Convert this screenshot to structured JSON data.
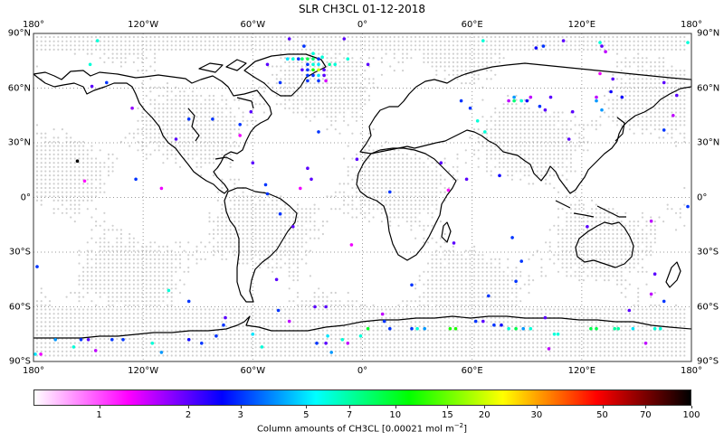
{
  "chart_data": {
    "type": "scatter",
    "subtype": "geographic map (Plate Carree) with colored observation points",
    "title": "SLR CH3CL 01-12-2018",
    "x_ticks": [
      "180°",
      "120°W",
      "60°W",
      "0°",
      "60°E",
      "120°E",
      "180°"
    ],
    "y_ticks": [
      "90°N",
      "60°N",
      "30°N",
      "0°",
      "30°S",
      "60°S",
      "90°S"
    ],
    "xlim": [
      -180,
      180
    ],
    "ylim": [
      -90,
      90
    ],
    "grid": "dotted gridlines every 60° lon / 30° lat",
    "background_points": "light gray dots on a regular grid over oceans/regions (no data)",
    "colorbar": {
      "label": "Column amounts of CH3CL [0.00021 mol m",
      "label_sup": "−2",
      "label_end": "]",
      "scale": "log",
      "range": [
        0.6,
        100
      ],
      "ticks": [
        "1",
        "2",
        "3",
        "5",
        "7",
        "10",
        "15",
        "20",
        "30",
        "50",
        "70",
        "100"
      ],
      "colors": [
        "#ffffff",
        "#ff00ff",
        "#0000ff",
        "#00ffff",
        "#00ff00",
        "#ffff00",
        "#ff0000",
        "#000000"
      ]
    },
    "points": [
      {
        "lon": -145,
        "lat": 86,
        "v": 6
      },
      {
        "lon": -149,
        "lat": 73,
        "v": 6
      },
      {
        "lon": -140,
        "lat": 63,
        "v": 3
      },
      {
        "lon": -148,
        "lat": 61,
        "v": 2
      },
      {
        "lon": -156,
        "lat": 20,
        "v": 100
      },
      {
        "lon": -152,
        "lat": 9,
        "v": 1.2
      },
      {
        "lon": -178,
        "lat": -38,
        "v": 3
      },
      {
        "lon": -179,
        "lat": -86,
        "v": 5
      },
      {
        "lon": -176,
        "lat": -86,
        "v": 1.3
      },
      {
        "lon": -126,
        "lat": 49,
        "v": 1.7
      },
      {
        "lon": -102,
        "lat": 32,
        "v": 2
      },
      {
        "lon": -95,
        "lat": 43,
        "v": 3
      },
      {
        "lon": -124,
        "lat": 10,
        "v": 3
      },
      {
        "lon": -110,
        "lat": 5,
        "v": 1.3
      },
      {
        "lon": -106,
        "lat": -51,
        "v": 6
      },
      {
        "lon": -95,
        "lat": -57,
        "v": 3
      },
      {
        "lon": -61,
        "lat": 47,
        "v": 2
      },
      {
        "lon": -82,
        "lat": 43,
        "v": 3
      },
      {
        "lon": -67,
        "lat": 40,
        "v": 3
      },
      {
        "lon": -67,
        "lat": 34,
        "v": 1.3
      },
      {
        "lon": -60,
        "lat": 19,
        "v": 2
      },
      {
        "lon": -45,
        "lat": 63,
        "v": 3
      },
      {
        "lon": -52,
        "lat": 73,
        "v": 2
      },
      {
        "lon": -32,
        "lat": 83,
        "v": 3
      },
      {
        "lon": -53,
        "lat": 7,
        "v": 3
      },
      {
        "lon": -52,
        "lat": 2,
        "v": 3
      },
      {
        "lon": -45,
        "lat": -9,
        "v": 3
      },
      {
        "lon": -38,
        "lat": -16,
        "v": 2
      },
      {
        "lon": -47,
        "lat": -45,
        "v": 2
      },
      {
        "lon": -34,
        "lat": 5,
        "v": 1.3
      },
      {
        "lon": -30,
        "lat": 16,
        "v": 2
      },
      {
        "lon": -28,
        "lat": 10,
        "v": 2
      },
      {
        "lon": -46,
        "lat": -62,
        "v": 3
      },
      {
        "lon": -26,
        "lat": -60,
        "v": 2
      },
      {
        "lon": -20,
        "lat": -60,
        "v": 2
      },
      {
        "lon": -41,
        "lat": 76,
        "v": 5
      },
      {
        "lon": -38,
        "lat": 76,
        "v": 6
      },
      {
        "lon": -35,
        "lat": 76,
        "v": 3
      },
      {
        "lon": -33,
        "lat": 76,
        "v": 8
      },
      {
        "lon": -30,
        "lat": 76,
        "v": 9
      },
      {
        "lon": -27,
        "lat": 76,
        "v": 8
      },
      {
        "lon": -24,
        "lat": 76,
        "v": 3
      },
      {
        "lon": -30,
        "lat": 73,
        "v": 3
      },
      {
        "lon": -27,
        "lat": 73,
        "v": 6
      },
      {
        "lon": -24,
        "lat": 73,
        "v": 5
      },
      {
        "lon": -18,
        "lat": 73,
        "v": 7
      },
      {
        "lon": -15,
        "lat": 73,
        "v": 6
      },
      {
        "lon": -33,
        "lat": 70,
        "v": 2
      },
      {
        "lon": -30,
        "lat": 70,
        "v": 3
      },
      {
        "lon": -27,
        "lat": 70,
        "v": 12
      },
      {
        "lon": -24,
        "lat": 70,
        "v": 20
      },
      {
        "lon": -21,
        "lat": 70,
        "v": 2
      },
      {
        "lon": -30,
        "lat": 67,
        "v": 3
      },
      {
        "lon": -27,
        "lat": 67,
        "v": 3
      },
      {
        "lon": -24,
        "lat": 67,
        "v": 5
      },
      {
        "lon": -21,
        "lat": 67,
        "v": 2
      },
      {
        "lon": -30,
        "lat": 64,
        "v": 3
      },
      {
        "lon": -24,
        "lat": 64,
        "v": 3
      },
      {
        "lon": -20,
        "lat": 64,
        "v": 1.4
      },
      {
        "lon": -27,
        "lat": 79,
        "v": 6
      },
      {
        "lon": -22,
        "lat": 77,
        "v": 6
      },
      {
        "lon": -8,
        "lat": 76,
        "v": 6
      },
      {
        "lon": 3,
        "lat": 73,
        "v": 2
      },
      {
        "lon": -10,
        "lat": 87,
        "v": 2
      },
      {
        "lon": -40,
        "lat": 87,
        "v": 2
      },
      {
        "lon": -24,
        "lat": 36,
        "v": 3
      },
      {
        "lon": -3,
        "lat": 21,
        "v": 2
      },
      {
        "lon": -6,
        "lat": -26,
        "v": 1.3
      },
      {
        "lon": 15,
        "lat": 3,
        "v": 3
      },
      {
        "lon": 47,
        "lat": 4,
        "v": 1.2
      },
      {
        "lon": 50,
        "lat": -25,
        "v": 2
      },
      {
        "lon": 57,
        "lat": 10,
        "v": 2
      },
      {
        "lon": 43,
        "lat": 19,
        "v": 2
      },
      {
        "lon": 75,
        "lat": 12,
        "v": 2.5
      },
      {
        "lon": 82,
        "lat": -22,
        "v": 3
      },
      {
        "lon": 87,
        "lat": -35,
        "v": 3
      },
      {
        "lon": 84,
        "lat": -46,
        "v": 3
      },
      {
        "lon": 69,
        "lat": -54,
        "v": 3
      },
      {
        "lon": 27,
        "lat": -48,
        "v": 3
      },
      {
        "lon": 54,
        "lat": 53,
        "v": 3
      },
      {
        "lon": 59,
        "lat": 49,
        "v": 3
      },
      {
        "lon": 63,
        "lat": 42,
        "v": 6
      },
      {
        "lon": 67,
        "lat": 36,
        "v": 6
      },
      {
        "lon": 80,
        "lat": 53,
        "v": 1.5
      },
      {
        "lon": 83,
        "lat": 55,
        "v": 4
      },
      {
        "lon": 83,
        "lat": 53,
        "v": 8
      },
      {
        "lon": 87,
        "lat": 53,
        "v": 6
      },
      {
        "lon": 90,
        "lat": 53,
        "v": 2.5
      },
      {
        "lon": 92,
        "lat": 55,
        "v": 1.5
      },
      {
        "lon": 97,
        "lat": 50,
        "v": 3
      },
      {
        "lon": 100,
        "lat": 48,
        "v": 2
      },
      {
        "lon": 103,
        "lat": 55,
        "v": 2
      },
      {
        "lon": 115,
        "lat": 47,
        "v": 2
      },
      {
        "lon": 110,
        "lat": 86,
        "v": 2
      },
      {
        "lon": 99,
        "lat": 83,
        "v": 3
      },
      {
        "lon": 95,
        "lat": 82,
        "v": 2.5
      },
      {
        "lon": 130,
        "lat": 85,
        "v": 6
      },
      {
        "lon": 131,
        "lat": 83,
        "v": 2
      },
      {
        "lon": 133,
        "lat": 80,
        "v": 1.5
      },
      {
        "lon": 66,
        "lat": 86,
        "v": 6
      },
      {
        "lon": 130,
        "lat": 68,
        "v": 1.3
      },
      {
        "lon": 137,
        "lat": 65,
        "v": 2
      },
      {
        "lon": 128,
        "lat": 55,
        "v": 1.5
      },
      {
        "lon": 128,
        "lat": 53,
        "v": 4
      },
      {
        "lon": 131,
        "lat": 48,
        "v": 4
      },
      {
        "lon": 136,
        "lat": 58,
        "v": 2.5
      },
      {
        "lon": 142,
        "lat": 55,
        "v": 2.5
      },
      {
        "lon": 165,
        "lat": 63,
        "v": 2
      },
      {
        "lon": 172,
        "lat": 56,
        "v": 2
      },
      {
        "lon": 178,
        "lat": 85,
        "v": 6
      },
      {
        "lon": 170,
        "lat": 45,
        "v": 1.5
      },
      {
        "lon": 165,
        "lat": 37,
        "v": 3
      },
      {
        "lon": 178,
        "lat": -5,
        "v": 3
      },
      {
        "lon": 158,
        "lat": -13,
        "v": 1.5
      },
      {
        "lon": 160,
        "lat": -42,
        "v": 2
      },
      {
        "lon": 158,
        "lat": -53,
        "v": 1.5
      },
      {
        "lon": 165,
        "lat": -57,
        "v": 3
      },
      {
        "lon": 146,
        "lat": -62,
        "v": 2
      },
      {
        "lon": 123,
        "lat": -16,
        "v": 2
      },
      {
        "lon": 113,
        "lat": 32,
        "v": 2
      },
      {
        "lon": 12,
        "lat": -68,
        "v": 3
      },
      {
        "lon": 11,
        "lat": -64,
        "v": 1.5
      },
      {
        "lon": 3,
        "lat": -72,
        "v": 10
      },
      {
        "lon": 15,
        "lat": -72,
        "v": 3
      },
      {
        "lon": -1,
        "lat": -76,
        "v": 6
      },
      {
        "lon": 27,
        "lat": -72,
        "v": 3
      },
      {
        "lon": 30,
        "lat": -72,
        "v": 6
      },
      {
        "lon": 34,
        "lat": -72,
        "v": 4
      },
      {
        "lon": 48,
        "lat": -72,
        "v": 12
      },
      {
        "lon": 51,
        "lat": -72,
        "v": 12
      },
      {
        "lon": 62,
        "lat": -68,
        "v": 3
      },
      {
        "lon": 66,
        "lat": -68,
        "v": 2
      },
      {
        "lon": 72,
        "lat": -70,
        "v": 3
      },
      {
        "lon": 76,
        "lat": -70,
        "v": 2.5
      },
      {
        "lon": 80,
        "lat": -72,
        "v": 6
      },
      {
        "lon": 84,
        "lat": -72,
        "v": 9
      },
      {
        "lon": 88,
        "lat": -72,
        "v": 4
      },
      {
        "lon": 92,
        "lat": -72,
        "v": 6
      },
      {
        "lon": 105,
        "lat": -75,
        "v": 6
      },
      {
        "lon": 107,
        "lat": -75,
        "v": 6
      },
      {
        "lon": 102,
        "lat": -83,
        "v": 1.5
      },
      {
        "lon": 100,
        "lat": -66,
        "v": 2
      },
      {
        "lon": 125,
        "lat": -72,
        "v": 9
      },
      {
        "lon": 128,
        "lat": -72,
        "v": 9
      },
      {
        "lon": 138,
        "lat": -72,
        "v": 7
      },
      {
        "lon": 140,
        "lat": -72,
        "v": 7
      },
      {
        "lon": 148,
        "lat": -72,
        "v": 5
      },
      {
        "lon": 160,
        "lat": -72,
        "v": 6
      },
      {
        "lon": 163,
        "lat": -72,
        "v": 6
      },
      {
        "lon": 155,
        "lat": -80,
        "v": 1.5
      },
      {
        "lon": -168,
        "lat": -78,
        "v": 4
      },
      {
        "lon": -158,
        "lat": -82,
        "v": 6
      },
      {
        "lon": -154,
        "lat": -78,
        "v": 3
      },
      {
        "lon": -150,
        "lat": -78,
        "v": 2
      },
      {
        "lon": -146,
        "lat": -84,
        "v": 1.5
      },
      {
        "lon": -137,
        "lat": -78,
        "v": 3
      },
      {
        "lon": -131,
        "lat": -78,
        "v": 3
      },
      {
        "lon": -110,
        "lat": -85,
        "v": 4
      },
      {
        "lon": -95,
        "lat": -78,
        "v": 2.5
      },
      {
        "lon": -88,
        "lat": -80,
        "v": 3
      },
      {
        "lon": -80,
        "lat": -76,
        "v": 3
      },
      {
        "lon": -76,
        "lat": -70,
        "v": 3
      },
      {
        "lon": -75,
        "lat": -66,
        "v": 2
      },
      {
        "lon": -60,
        "lat": -75,
        "v": 5
      },
      {
        "lon": -55,
        "lat": -82,
        "v": 6
      },
      {
        "lon": -40,
        "lat": -68,
        "v": 1.5
      },
      {
        "lon": -19,
        "lat": -76,
        "v": 5
      },
      {
        "lon": -11,
        "lat": -78,
        "v": 6
      },
      {
        "lon": -8,
        "lat": -80,
        "v": 1.5
      },
      {
        "lon": -25,
        "lat": -80,
        "v": 3
      },
      {
        "lon": -20,
        "lat": -80,
        "v": 2
      },
      {
        "lon": -17,
        "lat": -85,
        "v": 4
      },
      {
        "lon": -115,
        "lat": -80,
        "v": 6
      }
    ]
  }
}
